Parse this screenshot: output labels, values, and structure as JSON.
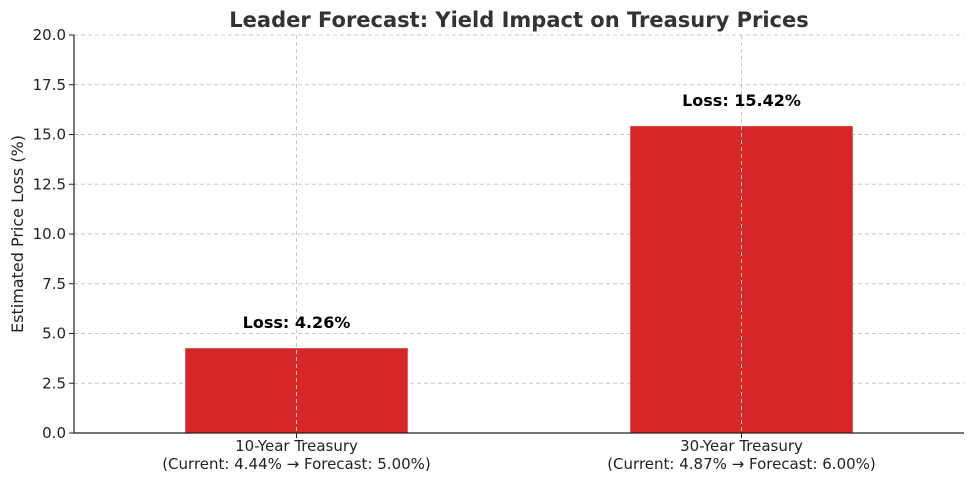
{
  "chart_data": {
    "type": "bar",
    "title": "Leader Forecast: Yield Impact on Treasury Prices",
    "xlabel": "",
    "ylabel": "Estimated Price Loss (%)",
    "ylim": [
      0,
      20
    ],
    "yticks": [
      0.0,
      2.5,
      5.0,
      7.5,
      10.0,
      12.5,
      15.0,
      17.5,
      20.0
    ],
    "ytick_labels": [
      "0.0",
      "2.5",
      "5.0",
      "7.5",
      "10.0",
      "12.5",
      "15.0",
      "17.5",
      "20.0"
    ],
    "grid": true,
    "bar_color": "#d62728",
    "categories": [
      {
        "line1": "10-Year Treasury",
        "line2": "(Current: 4.44% → Forecast: 5.00%)"
      },
      {
        "line1": "30-Year Treasury",
        "line2": "(Current: 4.87% → Forecast: 6.00%)"
      }
    ],
    "values": [
      4.26,
      15.42
    ],
    "data_labels": [
      "Loss: 4.26%",
      "Loss: 15.42%"
    ]
  }
}
